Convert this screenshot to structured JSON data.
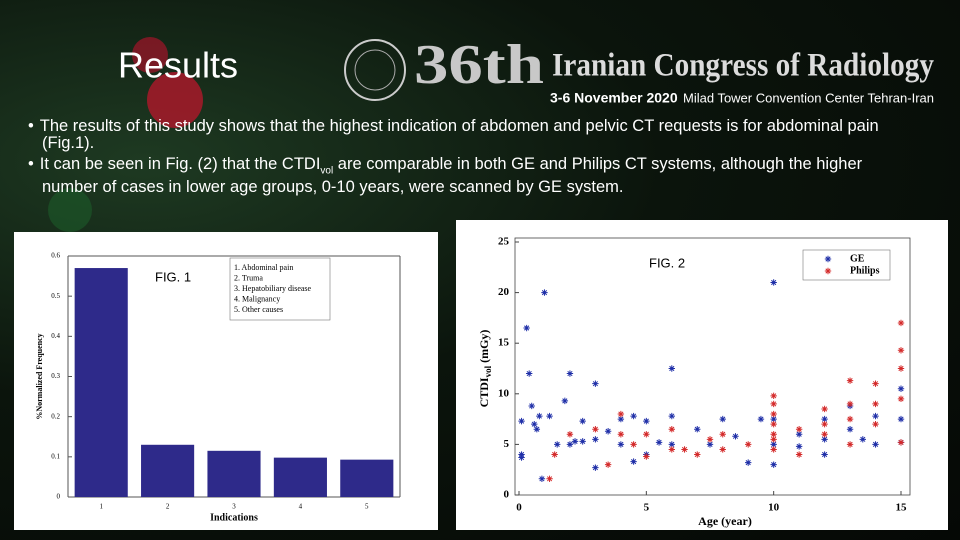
{
  "header": {
    "title": "Results",
    "edition": "36th",
    "congress": "Iranian Congress of Radiology",
    "dates": "3-6 November 2020",
    "venue": "Milad Tower Convention Center  Tehran-Iran"
  },
  "bullets": [
    {
      "text": "The results of this study shows that the highest indication of abdomen and pelvic CT requests is for abdominal pain (Fig.1)."
    },
    {
      "text": "It can be seen in Fig. (2) that the CTDI",
      "sub": "vol",
      "rest": " are comparable in both GE and Philips CT systems, although the higher number of cases in lower age groups, 0-10 years, were scanned by GE system."
    }
  ],
  "chart_data": [
    {
      "type": "bar",
      "annotation": "FIG. 1",
      "xlabel": "Indications",
      "ylabel": "%Normalized Frequency",
      "categories": [
        "1",
        "2",
        "3",
        "4",
        "5"
      ],
      "values": [
        0.57,
        0.13,
        0.115,
        0.098,
        0.093
      ],
      "color": "#2e2a8a",
      "ylim": [
        0,
        0.6
      ],
      "yticks": [
        0,
        0.1,
        0.2,
        0.3,
        0.4,
        0.5,
        0.6
      ],
      "legend_text": [
        "1. Abdominal pain",
        "2. Truma",
        "3. Hepatobiliary disease",
        "4. Malignancy",
        "5. Other causes"
      ]
    },
    {
      "type": "scatter",
      "annotation": "FIG. 2",
      "xlabel": "Age (year)",
      "ylabel": {
        "main": "CTDI",
        "sub": "vol",
        "unit": " (mGy)"
      },
      "xlim": [
        0,
        15
      ],
      "xticks": [
        0,
        5,
        10,
        15
      ],
      "ylim": [
        0,
        25
      ],
      "yticks": [
        0,
        5,
        10,
        15,
        20,
        25
      ],
      "legend": "upper right",
      "series": [
        {
          "name": "GE",
          "color": "#1f2fa8",
          "x": [
            0.1,
            0.1,
            0.1,
            0.3,
            0.4,
            0.5,
            0.6,
            0.7,
            0.8,
            0.9,
            1,
            1.2,
            1.5,
            1.8,
            2,
            2,
            2.2,
            2.5,
            2.5,
            3,
            3,
            3,
            3.5,
            4,
            4,
            4.5,
            4.5,
            5,
            5,
            5.5,
            6,
            6,
            6,
            7,
            7.5,
            8,
            8.5,
            9,
            9.5,
            10,
            10,
            10,
            10,
            11,
            11,
            12,
            12,
            12,
            13,
            13,
            13.5,
            14,
            14,
            15,
            15,
            15
          ],
          "values": [
            4,
            3.7,
            7.3,
            16.5,
            12,
            8.8,
            7,
            6.5,
            7.8,
            1.6,
            20,
            7.8,
            5,
            9.3,
            12,
            5,
            5.3,
            7.3,
            5.3,
            11,
            5.5,
            2.7,
            6.3,
            7.5,
            5,
            7.8,
            3.3,
            7.3,
            4,
            5.2,
            12.5,
            7.8,
            5,
            6.5,
            5,
            7.5,
            5.8,
            3.2,
            7.5,
            21,
            7.5,
            5,
            3,
            6,
            4.8,
            7.5,
            4,
            5.5,
            8.8,
            6.5,
            5.5,
            7.8,
            5,
            10.5,
            7.5,
            5.2
          ]
        },
        {
          "name": "Philips",
          "color": "#d42a2a",
          "x": [
            1.2,
            1.4,
            2,
            3,
            3.5,
            4,
            4,
            4.5,
            5,
            5,
            6,
            6,
            6.5,
            7,
            7.5,
            8,
            8,
            9,
            10,
            10,
            10,
            10,
            10,
            10,
            10,
            11,
            11,
            12,
            12,
            12,
            13,
            13,
            13,
            13,
            14,
            14,
            14,
            15,
            15,
            15,
            15,
            15
          ],
          "values": [
            1.6,
            4,
            6,
            6.5,
            3,
            8,
            6,
            5,
            3.8,
            6,
            4.5,
            6.5,
            4.5,
            4,
            5.5,
            4.5,
            6,
            5,
            9.8,
            9,
            8,
            7,
            6,
            5.5,
            4.5,
            6.5,
            4,
            8.5,
            7,
            6,
            11.3,
            9,
            7.5,
            5,
            11,
            9,
            7,
            17,
            14.3,
            12.5,
            9.5,
            5.2
          ]
        }
      ]
    }
  ]
}
